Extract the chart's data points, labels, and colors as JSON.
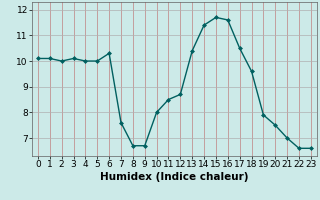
{
  "x": [
    0,
    1,
    2,
    3,
    4,
    5,
    6,
    7,
    8,
    9,
    10,
    11,
    12,
    13,
    14,
    15,
    16,
    17,
    18,
    19,
    20,
    21,
    22,
    23
  ],
  "y": [
    10.1,
    10.1,
    10.0,
    10.1,
    10.0,
    10.0,
    10.3,
    7.6,
    6.7,
    6.7,
    8.0,
    8.5,
    8.7,
    10.4,
    11.4,
    11.7,
    11.6,
    10.5,
    9.6,
    7.9,
    7.5,
    7.0,
    6.6,
    6.6
  ],
  "line_color": "#006060",
  "marker": "D",
  "marker_size": 2.0,
  "bg_color": "#cceae8",
  "grid_color": "#b0b0c0",
  "xlabel": "Humidex (Indice chaleur)",
  "xlim": [
    -0.5,
    23.5
  ],
  "ylim": [
    6.3,
    12.3
  ],
  "yticks": [
    7,
    8,
    9,
    10,
    11,
    12
  ],
  "xticks": [
    0,
    1,
    2,
    3,
    4,
    5,
    6,
    7,
    8,
    9,
    10,
    11,
    12,
    13,
    14,
    15,
    16,
    17,
    18,
    19,
    20,
    21,
    22,
    23
  ],
  "xlabel_fontsize": 7.5,
  "tick_fontsize": 6.5,
  "linewidth": 1.0
}
